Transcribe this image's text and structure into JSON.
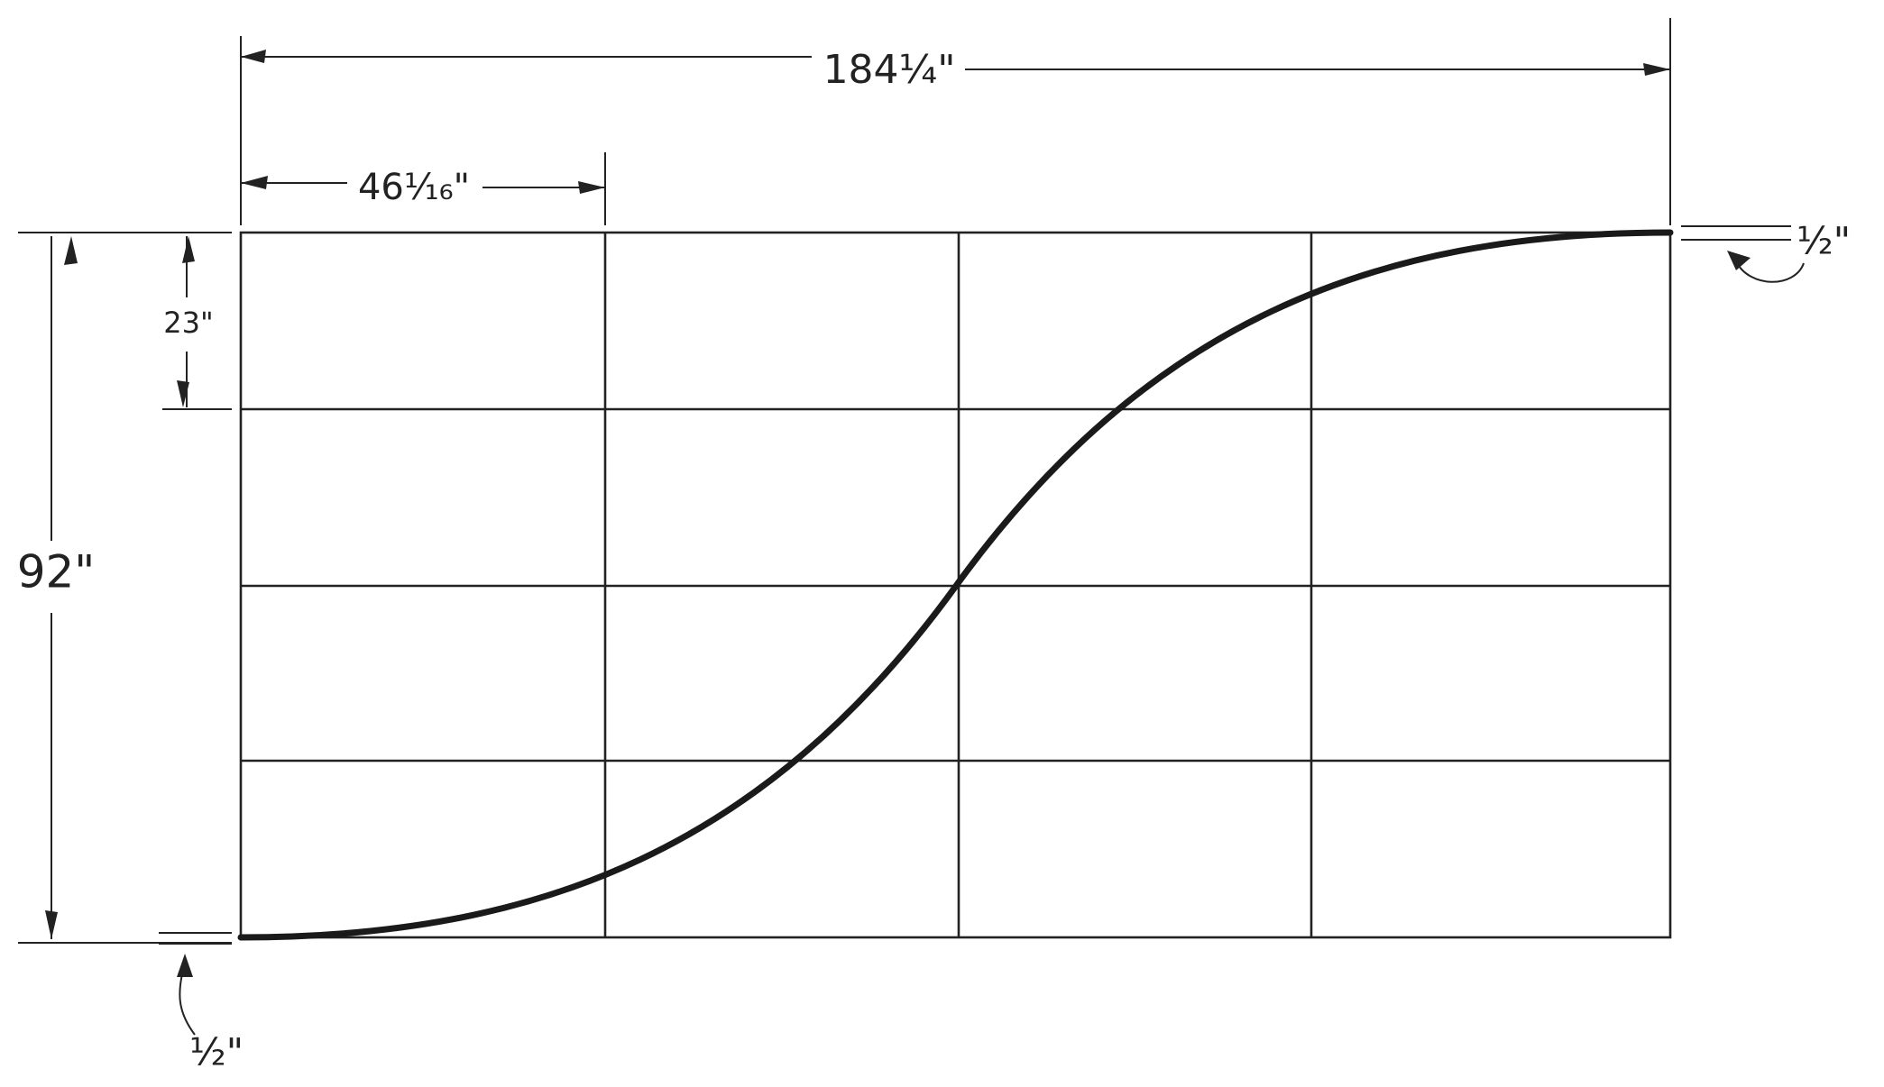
{
  "dimensions": {
    "total_width": "184¼\"",
    "section_width": "46¹⁄₁₆\"",
    "row_height": "23\"",
    "total_height": "92\"",
    "top_offset": "½\"",
    "bottom_offset": "½\""
  }
}
